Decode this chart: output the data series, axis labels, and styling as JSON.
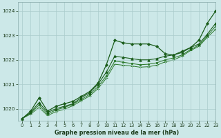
{
  "title": "Graphe pression niveau de la mer (hPa)",
  "bg_color": "#cce8e8",
  "grid_color": "#aacccc",
  "xlim": [
    -0.5,
    23
  ],
  "ylim": [
    1019.5,
    1024.35
  ],
  "yticks": [
    1020,
    1021,
    1022,
    1023,
    1024
  ],
  "xticks": [
    0,
    1,
    2,
    3,
    4,
    5,
    6,
    7,
    8,
    9,
    10,
    11,
    12,
    13,
    14,
    15,
    16,
    17,
    18,
    19,
    20,
    21,
    22,
    23
  ],
  "series": [
    {
      "x": [
        0,
        1,
        2,
        3,
        4,
        5,
        6,
        7,
        8,
        9,
        10,
        11,
        12,
        13,
        14,
        15,
        16,
        17,
        18,
        19,
        20,
        21,
        22,
        23
      ],
      "y": [
        1019.6,
        1019.9,
        1020.45,
        1019.9,
        1020.1,
        1020.2,
        1020.3,
        1020.5,
        1020.7,
        1021.05,
        1021.8,
        1022.8,
        1022.7,
        1022.65,
        1022.65,
        1022.65,
        1022.55,
        1022.25,
        1022.2,
        1022.35,
        1022.5,
        1022.8,
        1023.5,
        1024.0
      ],
      "color": "#1a5c1a",
      "marker": "D",
      "markersize": 2.0,
      "linewidth": 0.9,
      "zorder": 4
    },
    {
      "x": [
        0,
        1,
        2,
        3,
        4,
        5,
        6,
        7,
        8,
        9,
        10,
        11,
        12,
        13,
        14,
        15,
        16,
        17,
        18,
        19,
        20,
        21,
        22,
        23
      ],
      "y": [
        1019.6,
        1019.85,
        1020.25,
        1019.85,
        1020.0,
        1020.1,
        1020.2,
        1020.45,
        1020.65,
        1021.0,
        1021.5,
        1022.15,
        1022.1,
        1022.05,
        1022.0,
        1022.0,
        1022.05,
        1022.15,
        1022.2,
        1022.3,
        1022.5,
        1022.65,
        1023.05,
        1023.5
      ],
      "color": "#1a5c1a",
      "marker": "^",
      "markersize": 2.5,
      "linewidth": 0.8,
      "zorder": 3
    },
    {
      "x": [
        0,
        1,
        2,
        3,
        4,
        5,
        6,
        7,
        8,
        9,
        10,
        11,
        12,
        13,
        14,
        15,
        16,
        17,
        18,
        19,
        20,
        21,
        22,
        23
      ],
      "y": [
        1019.6,
        1019.82,
        1020.15,
        1019.78,
        1019.95,
        1020.05,
        1020.18,
        1020.38,
        1020.58,
        1020.9,
        1021.35,
        1021.95,
        1021.9,
        1021.85,
        1021.8,
        1021.82,
        1021.88,
        1022.0,
        1022.08,
        1022.2,
        1022.42,
        1022.6,
        1022.98,
        1023.38
      ],
      "color": "#2d7a2d",
      "marker": "s",
      "markersize": 1.8,
      "linewidth": 0.75,
      "zorder": 2
    },
    {
      "x": [
        0,
        1,
        2,
        3,
        4,
        5,
        6,
        7,
        8,
        9,
        10,
        11,
        12,
        13,
        14,
        15,
        16,
        17,
        18,
        19,
        20,
        21,
        22,
        23
      ],
      "y": [
        1019.6,
        1019.78,
        1020.05,
        1019.72,
        1019.88,
        1019.98,
        1020.12,
        1020.32,
        1020.52,
        1020.82,
        1021.25,
        1021.82,
        1021.78,
        1021.75,
        1021.7,
        1021.72,
        1021.78,
        1021.92,
        1022.0,
        1022.15,
        1022.38,
        1022.55,
        1022.92,
        1023.25
      ],
      "color": "#2d7a2d",
      "marker": "+",
      "markersize": 3.0,
      "linewidth": 0.7,
      "zorder": 1
    }
  ]
}
